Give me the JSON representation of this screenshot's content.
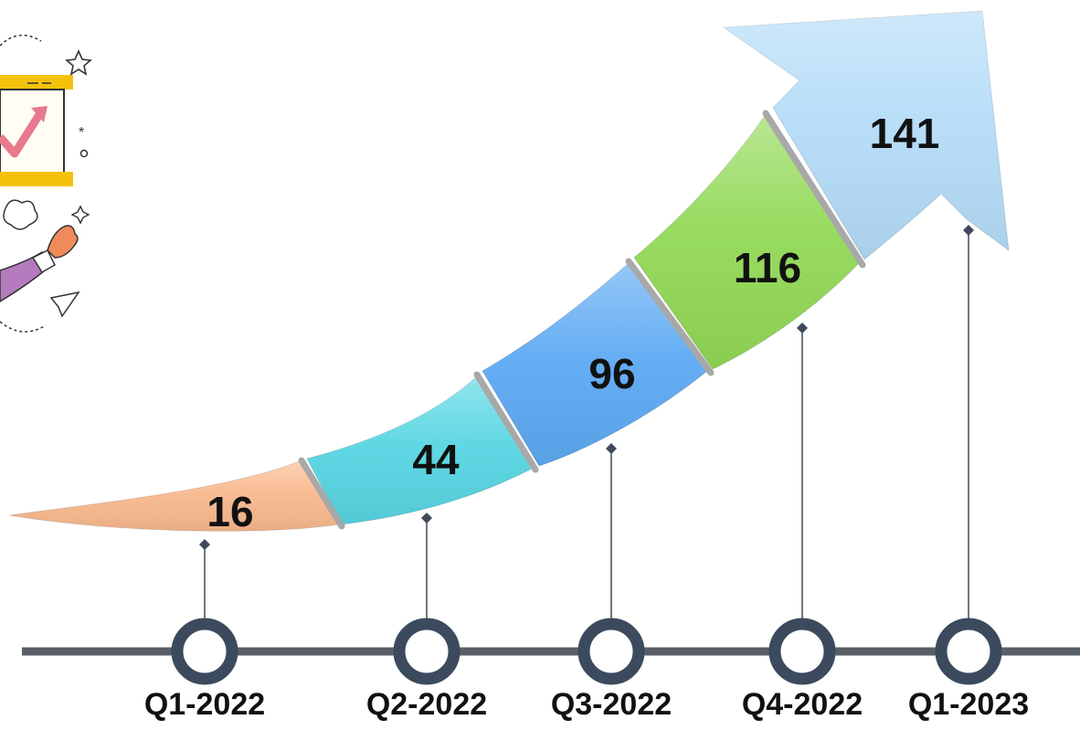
{
  "chart_data": {
    "type": "bar",
    "title": "",
    "xlabel": "",
    "ylabel": "",
    "categories": [
      "Q1-2022",
      "Q2-2022",
      "Q3-2022",
      "Q4-2022",
      "Q1-2023"
    ],
    "values": [
      16,
      44,
      96,
      116,
      141
    ],
    "colors": [
      "#f9b98e",
      "#58d6e3",
      "#5eaaf3",
      "#92d957",
      "#b4dcf8"
    ],
    "grid": false,
    "legend": "none"
  },
  "colors": {
    "axis_line": "#5a5f66",
    "marker_ring": "#3b4a5d",
    "connector": "#3f4a5a",
    "segment_gap": "#a8a8a8"
  },
  "decoration": {
    "icon": "growth-chart-doodle-icon"
  }
}
